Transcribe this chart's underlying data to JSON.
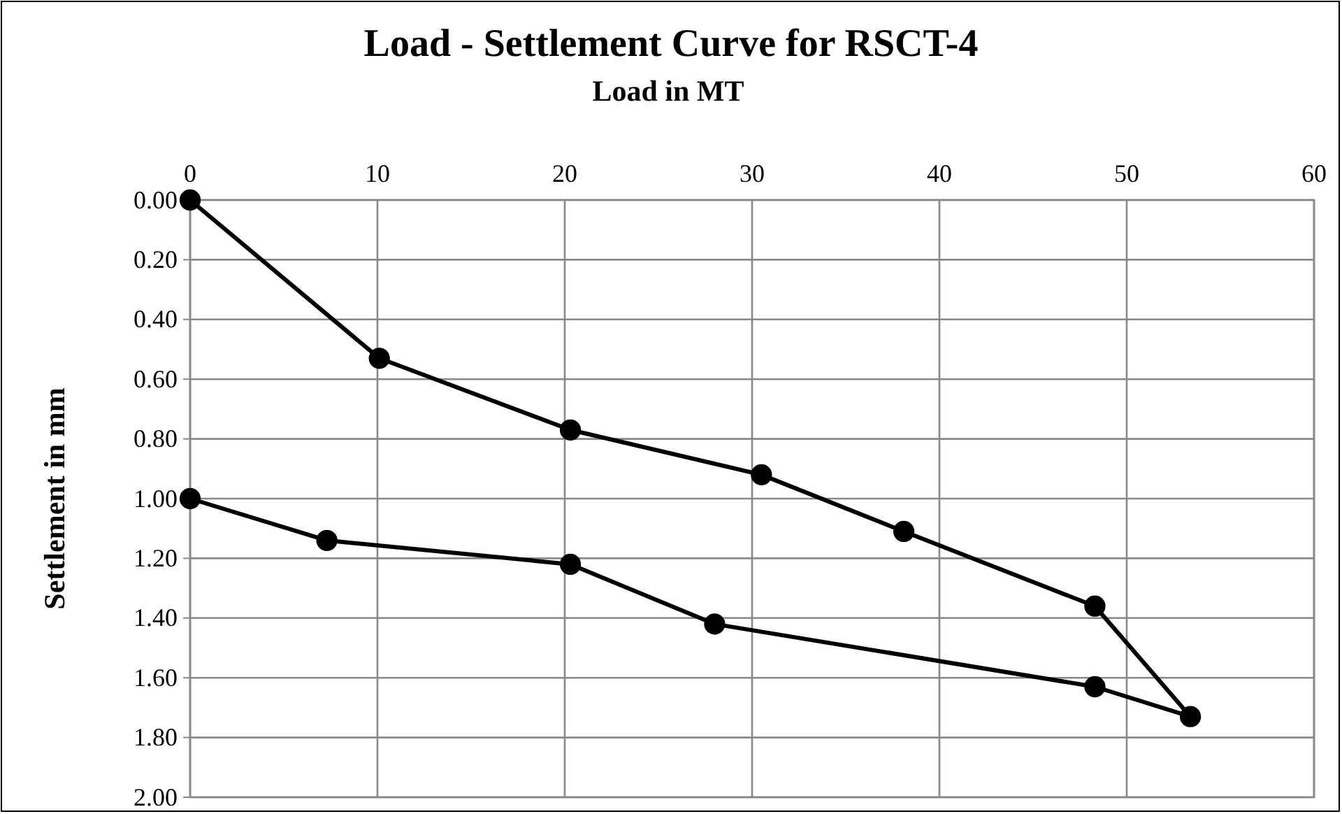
{
  "chart_data": {
    "type": "line",
    "title": "Load - Settlement Curve for RSCT-4",
    "xlabel": "Load in MT",
    "ylabel": "Settlement in mm",
    "x": [
      0,
      10.1,
      20.3,
      30.5,
      38.1,
      48.3,
      53.4,
      48.3,
      28.0,
      20.3,
      7.3,
      0
    ],
    "series": [
      {
        "color": "#000000",
        "values": [
          0,
          0.53,
          0.77,
          0.92,
          1.11,
          1.36,
          1.73,
          1.63,
          1.42,
          1.22,
          1.14,
          1.0
        ]
      }
    ],
    "xlim": [
      0,
      60
    ],
    "xticks": [
      0,
      10,
      20,
      30,
      40,
      50,
      60
    ],
    "ylim": [
      2,
      0
    ],
    "yticks": [
      {
        "value": 0,
        "label": "0.00"
      },
      {
        "value": 0.2,
        "label": "0.20"
      },
      {
        "value": 0.4,
        "label": "0.40"
      },
      {
        "value": 0.6,
        "label": "0.60"
      },
      {
        "value": 0.8,
        "label": "0.80"
      },
      {
        "value": 1,
        "label": "1.00"
      },
      {
        "value": 1.2,
        "label": "1.20"
      },
      {
        "value": 1.4,
        "label": "1.40"
      },
      {
        "value": 1.6,
        "label": "1.60"
      },
      {
        "value": 1.8,
        "label": "1.80"
      },
      {
        "value": 2,
        "label": "2.00"
      }
    ],
    "grid": true,
    "marker": "circle",
    "line_style": "solid"
  }
}
